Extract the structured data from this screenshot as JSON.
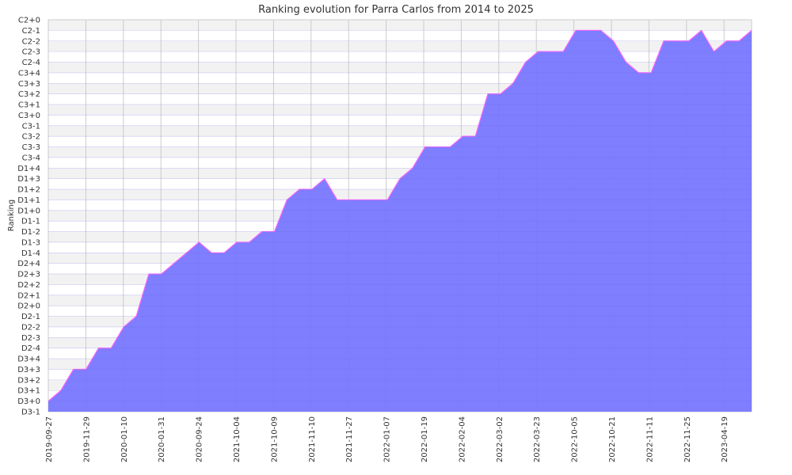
{
  "chart_data": {
    "type": "area",
    "title": "Ranking evolution for Parra Carlos from 2014 to 2025",
    "xlabel": "",
    "ylabel": "Ranking",
    "y_categories": [
      "D3-1",
      "D3+0",
      "D3+1",
      "D3+2",
      "D3+3",
      "D3+4",
      "D2-4",
      "D2-3",
      "D2-2",
      "D2-1",
      "D2+0",
      "D2+1",
      "D2+2",
      "D2+3",
      "D2+4",
      "D1-4",
      "D1-3",
      "D1-2",
      "D1-1",
      "D1+0",
      "D1+1",
      "D1+2",
      "D1+3",
      "D1+4",
      "C3-4",
      "C3-3",
      "C3-2",
      "C3-1",
      "C3+0",
      "C3+1",
      "C3+2",
      "C3+3",
      "C3+4",
      "C2-4",
      "C2-3",
      "C2-2",
      "C2-1",
      "C2+0"
    ],
    "x_tick_labels": [
      "2019-09-27",
      "2019-11-29",
      "2020-01-10",
      "2020-01-31",
      "2020-09-24",
      "2021-10-04",
      "2021-10-09",
      "2021-11-10",
      "2021-11-27",
      "2022-01-07",
      "2022-01-19",
      "2022-02-04",
      "2022-03-02",
      "2022-03-23",
      "2022-10-05",
      "2022-10-21",
      "2022-11-11",
      "2022-11-25",
      "2023-04-19"
    ],
    "series": [
      {
        "values": [
          "D3+0",
          "D3+1",
          "D3+3",
          "D3+3",
          "D2-4",
          "D2-4",
          "D2-2",
          "D2-1",
          "D2+3",
          "D2+3",
          "D2+4",
          "D1-4",
          "D1-3",
          "D1-4",
          "D1-4",
          "D1-3",
          "D1-3",
          "D1-2",
          "D1-2",
          "D1+1",
          "D1+2",
          "D1+2",
          "D1+3",
          "D1+1",
          "D1+1",
          "D1+1",
          "D1+1",
          "D1+1",
          "D1+3",
          "D1+4",
          "C3-3",
          "C3-3",
          "C3-3",
          "C3-2",
          "C3-2",
          "C3+2",
          "C3+2",
          "C3+3",
          "C2-4",
          "C2-3",
          "C2-3",
          "C2-3",
          "C2-1",
          "C2-1",
          "C2-1",
          "C2-2",
          "C2-4",
          "C3+4",
          "C3+4",
          "C2-2",
          "C2-2",
          "C2-2",
          "C2-1",
          "C2-3",
          "C2-2",
          "C2-2",
          "C2-1"
        ]
      }
    ],
    "grid": true,
    "fill_color": "#7777ff",
    "line_color": "#ff66ff",
    "band_colors": [
      "#ffffff",
      "#f2f2f2"
    ],
    "gridline_color": "#cccccc"
  }
}
